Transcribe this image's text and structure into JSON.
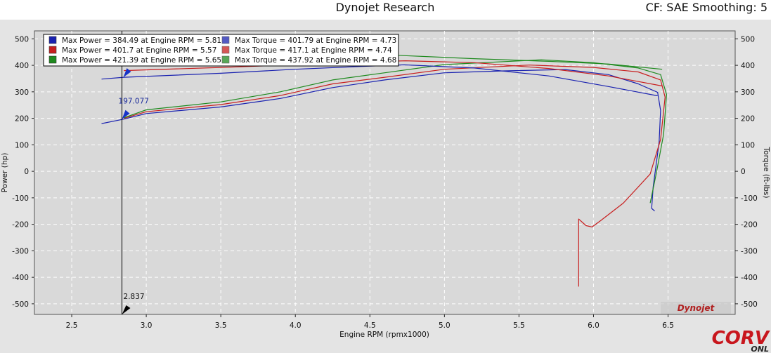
{
  "header": {
    "title": "Dynojet Research",
    "settings": "CF: SAE Smoothing: 5"
  },
  "watermarks": {
    "dynojet": "Dynojet",
    "corvette": "CORV",
    "online": "ONL"
  },
  "colors": {
    "plot_bg": "#d9d9d9",
    "outer_bg": "#e4e4e4",
    "run1": "#1a22b0",
    "run2": "#c81e1e",
    "run3": "#1f8a1f",
    "cursor_marker": "#1733c8"
  },
  "cursor": {
    "rpm_label": "2.837",
    "value_label": "197.077"
  },
  "chart_data": {
    "type": "line",
    "title": "Dynojet Research",
    "xlabel": "Engine RPM (rpmx1000)",
    "ylabel": "Power (hp)",
    "y2label": "Torque (ft-lbs)",
    "xlim": [
      2.25,
      6.95
    ],
    "ylim": [
      -540,
      530
    ],
    "x_ticks": [
      "2.5",
      "3.0",
      "3.5",
      "4.0",
      "4.5",
      "5.0",
      "5.5",
      "6.0",
      "6.5"
    ],
    "y_ticks": [
      "500",
      "400",
      "300",
      "200",
      "100",
      "0",
      "-100",
      "-200",
      "-300",
      "-400",
      "-500"
    ],
    "grid": true,
    "legend_position": "top-left",
    "legend": [
      [
        "Max Power = 384.49 at Engine RPM = 5.81",
        "Max Torque = 401.79 at Engine RPM = 4.73"
      ],
      [
        "Max Power = 401.7 at Engine RPM = 5.57",
        "Max Torque = 417.1 at Engine RPM = 4.74"
      ],
      [
        "Max Power = 421.39 at Engine RPM = 5.65",
        "Max Torque = 437.92 at Engine RPM = 4.68"
      ]
    ],
    "series": [
      {
        "name": "Max Power = 384.49 at Engine RPM = 5.81",
        "kind": "power",
        "color": "#1a22b0",
        "x": [
          2.7,
          2.85,
          3.0,
          3.5,
          3.9,
          4.25,
          4.6,
          5.0,
          5.4,
          5.81,
          6.1,
          6.3,
          6.43,
          6.45,
          6.44,
          6.4,
          6.39,
          6.41
        ],
        "y": [
          180,
          197,
          218,
          243,
          275,
          316,
          345,
          372,
          379,
          384,
          365,
          330,
          298,
          230,
          110,
          -60,
          -140,
          -150
        ]
      },
      {
        "name": "Max Power = 401.7 at Engine RPM = 5.57",
        "kind": "power",
        "color": "#c81e1e",
        "x": [
          2.85,
          3.0,
          3.5,
          3.9,
          4.25,
          4.6,
          5.0,
          5.57,
          6.0,
          6.3,
          6.45,
          6.48,
          6.45,
          6.38,
          6.2,
          6.05,
          5.99,
          5.95,
          5.9,
          5.9
        ],
        "y": [
          200,
          225,
          252,
          286,
          330,
          355,
          385,
          401,
          392,
          375,
          345,
          280,
          120,
          -10,
          -120,
          -185,
          -210,
          -205,
          -180,
          -435
        ]
      },
      {
        "name": "Max Power = 421.39 at Engine RPM = 5.65",
        "kind": "power",
        "color": "#1f8a1f",
        "x": [
          2.85,
          3.0,
          3.5,
          3.9,
          4.25,
          4.6,
          5.0,
          5.65,
          6.0,
          6.3,
          6.45,
          6.49,
          6.47,
          6.42,
          6.38
        ],
        "y": [
          202,
          232,
          262,
          300,
          345,
          372,
          403,
          421,
          410,
          390,
          365,
          290,
          140,
          -10,
          -120
        ]
      },
      {
        "name": "Max Torque = 401.79 at Engine RPM = 4.73",
        "kind": "torque",
        "color": "#1a22b0",
        "x": [
          2.7,
          2.85,
          3.5,
          4.0,
          4.4,
          4.73,
          5.2,
          5.7,
          6.1,
          6.43
        ],
        "y": [
          348,
          355,
          370,
          385,
          395,
          401.79,
          390,
          360,
          320,
          285
        ]
      },
      {
        "name": "Max Torque = 417.1 at Engine RPM = 4.74",
        "kind": "torque",
        "color": "#c81e1e",
        "x": [
          2.85,
          3.5,
          4.0,
          4.4,
          4.74,
          5.2,
          5.7,
          6.1,
          6.46
        ],
        "y": [
          380,
          392,
          402,
          412,
          417.1,
          410,
          388,
          360,
          322
        ]
      },
      {
        "name": "Max Torque = 437.92 at Engine RPM = 4.68",
        "kind": "torque",
        "color": "#1f8a1f",
        "x": [
          2.85,
          3.5,
          4.0,
          4.4,
          4.68,
          5.2,
          5.7,
          6.1,
          6.46
        ],
        "y": [
          400,
          415,
          425,
          433,
          437.92,
          425,
          415,
          405,
          385
        ]
      }
    ]
  }
}
